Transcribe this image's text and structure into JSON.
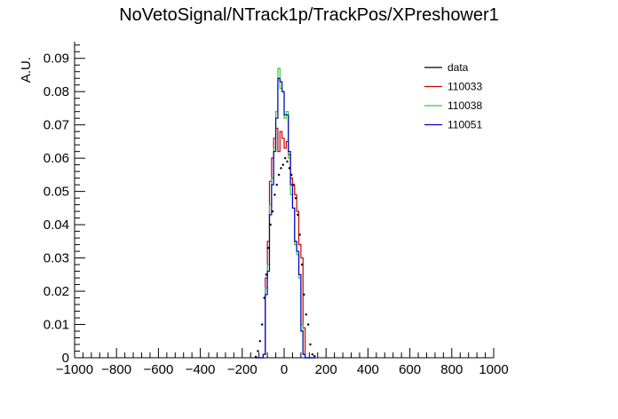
{
  "chart_data": {
    "type": "histogram",
    "title": "NoVetoSignal/NTrack1p/TrackPos/XPreshower1",
    "xlabel": "",
    "ylabel": "A.U.",
    "xlim": [
      -1000,
      1000
    ],
    "ylim": [
      0,
      0.095
    ],
    "x_ticks": [
      -1000,
      -800,
      -600,
      -400,
      -200,
      0,
      200,
      400,
      600,
      800,
      1000
    ],
    "x_tick_labels": [
      "−1000",
      "−800",
      "−600",
      "−400",
      "−200",
      "0",
      "200",
      "400",
      "600",
      "800",
      "1000"
    ],
    "y_ticks": [
      0,
      0.01,
      0.02,
      0.03,
      0.04,
      0.05,
      0.06,
      0.07,
      0.08,
      0.09
    ],
    "y_tick_labels": [
      "0",
      "0.01",
      "0.02",
      "0.03",
      "0.04",
      "0.05",
      "0.06",
      "0.07",
      "0.08",
      "0.09"
    ],
    "bin_width": 10,
    "legend_position": "top-right",
    "series": [
      {
        "name": "data",
        "style": "markers",
        "color": "#000000",
        "x": [
          -135,
          -125,
          -115,
          -105,
          -95,
          -85,
          -75,
          -65,
          -55,
          -45,
          -35,
          -25,
          -15,
          -5,
          5,
          15,
          25,
          35,
          45,
          55,
          65,
          75,
          85,
          95,
          105,
          115,
          125,
          135,
          145
        ],
        "values": [
          0.0003,
          0.002,
          0.005,
          0.01,
          0.018,
          0.025,
          0.033,
          0.04,
          0.044,
          0.049,
          0.052,
          0.055,
          0.057,
          0.058,
          0.06,
          0.059,
          0.057,
          0.055,
          0.052,
          0.048,
          0.043,
          0.037,
          0.028,
          0.019,
          0.013,
          0.01,
          0.004,
          0.001,
          0.0005
        ]
      },
      {
        "name": "110033",
        "style": "step",
        "color": "#cc0000",
        "x": [
          -135,
          -125,
          -115,
          -105,
          -95,
          -85,
          -75,
          -65,
          -55,
          -45,
          -35,
          -25,
          -15,
          -5,
          5,
          15,
          25,
          35,
          45,
          55,
          65,
          75,
          85,
          95,
          105,
          115,
          125,
          135,
          145
        ],
        "values": [
          0,
          0,
          0,
          0,
          0.001,
          0.024,
          0.035,
          0.053,
          0.06,
          0.066,
          0.069,
          0.062,
          0.068,
          0.066,
          0.063,
          0.065,
          0.061,
          0.054,
          0.052,
          0.049,
          0.044,
          0.034,
          0.03,
          0.009,
          0,
          0,
          0,
          0,
          0
        ]
      },
      {
        "name": "110038",
        "style": "step",
        "color": "#33cc33",
        "x": [
          -135,
          -125,
          -115,
          -105,
          -95,
          -85,
          -75,
          -65,
          -55,
          -45,
          -35,
          -25,
          -15,
          -5,
          5,
          15,
          25,
          35,
          45,
          55,
          65,
          75,
          85,
          95,
          105,
          115,
          125,
          135,
          145
        ],
        "values": [
          0,
          0,
          0,
          0,
          0.001,
          0.021,
          0.028,
          0.046,
          0.054,
          0.063,
          0.074,
          0.087,
          0.081,
          0.08,
          0.072,
          0.074,
          0.06,
          0.049,
          0.045,
          0.034,
          0.031,
          0.024,
          0.01,
          0.001,
          0,
          0,
          0,
          0,
          0
        ]
      },
      {
        "name": "110051",
        "style": "step",
        "color": "#0000cc",
        "x": [
          -135,
          -125,
          -115,
          -105,
          -95,
          -85,
          -75,
          -65,
          -55,
          -45,
          -35,
          -25,
          -15,
          -5,
          5,
          15,
          25,
          35,
          45,
          55,
          65,
          75,
          85,
          95,
          105,
          115,
          125,
          135,
          145
        ],
        "values": [
          0,
          0,
          0,
          0,
          0.001,
          0.019,
          0.026,
          0.043,
          0.052,
          0.062,
          0.072,
          0.084,
          0.083,
          0.08,
          0.073,
          0.073,
          0.062,
          0.052,
          0.045,
          0.035,
          0.032,
          0.025,
          0.008,
          0.001,
          0,
          0,
          0,
          0,
          0
        ]
      }
    ]
  }
}
